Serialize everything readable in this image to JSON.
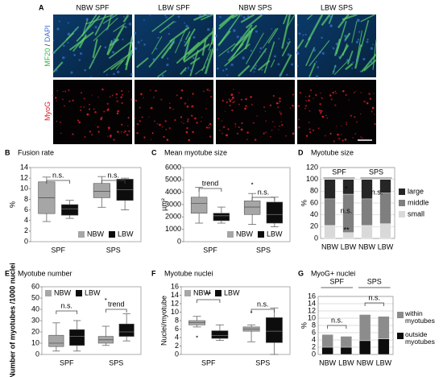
{
  "panel_a": {
    "letter": "A",
    "columns": [
      "NBW SPF",
      "LBW SPF",
      "NBW SPS",
      "LBW SPS"
    ],
    "row_labels": [
      [
        "MF20",
        " / ",
        "DAPI"
      ],
      [
        "MyoG"
      ]
    ]
  },
  "chart_data": [
    {
      "type": "box",
      "letter": "B",
      "title": "Fusion rate",
      "ylabel": "%",
      "categories": [
        "SPF",
        "SPS"
      ],
      "ylim": [
        0,
        14
      ],
      "yticks": [
        0,
        2,
        4,
        6,
        8,
        10,
        12,
        14
      ],
      "grid": false,
      "legend": "lower right",
      "annotations": [
        "n.s.",
        "n.s."
      ],
      "series": [
        {
          "name": "NBW",
          "color": "#a6a6a6",
          "values": [
            {
              "min": 3.8,
              "q1": 5.3,
              "median": 8.3,
              "q3": 11.3,
              "max": 12.2
            },
            {
              "min": 6.5,
              "q1": 8.3,
              "median": 9.5,
              "q3": 11,
              "max": 12.3
            }
          ]
        },
        {
          "name": "LBW",
          "color": "#0d0d0d",
          "values": [
            {
              "min": 4.4,
              "q1": 5.0,
              "median": 6.2,
              "q3": 7.0,
              "max": 7.8
            },
            {
              "min": 6.0,
              "q1": 7.8,
              "median": 9.8,
              "q3": 11.8,
              "max": 12.0
            }
          ]
        }
      ]
    },
    {
      "type": "box",
      "letter": "C",
      "title": "Mean myotube size",
      "ylabel": "µm²",
      "categories": [
        "SPF",
        "SPS"
      ],
      "ylim": [
        0,
        6000
      ],
      "yticks": [
        0,
        1000,
        2000,
        3000,
        4000,
        5000,
        6000
      ],
      "grid": false,
      "legend": "lower right",
      "annotations": [
        "trend",
        "n.s."
      ],
      "series": [
        {
          "name": "NBW",
          "color": "#a6a6a6",
          "values": [
            {
              "min": 1500,
              "q1": 2300,
              "median": 3100,
              "q3": 3600,
              "max": 4400
            },
            {
              "min": 1400,
              "q1": 2200,
              "median": 2800,
              "q3": 3300,
              "max": 3900,
              "outliers": [
                4700
              ]
            }
          ]
        },
        {
          "name": "LBW",
          "color": "#0d0d0d",
          "values": [
            {
              "min": 1500,
              "q1": 1700,
              "median": 2100,
              "q3": 2300,
              "max": 2800
            },
            {
              "min": 1200,
              "q1": 1500,
              "median": 2200,
              "q3": 3200,
              "max": 3600
            }
          ]
        }
      ]
    },
    {
      "type": "stacked",
      "letter": "D",
      "title": "Myotube size",
      "ylabel": "%",
      "categories": [
        "NBW",
        "LBW",
        "NBW",
        "LBW"
      ],
      "groups": [
        "SPF",
        "SPS"
      ],
      "ylim": [
        0,
        120
      ],
      "yticks": [
        0,
        20,
        40,
        60,
        80,
        100,
        120
      ],
      "grid": true,
      "legend": "right",
      "annotations": [
        "*",
        "n.s.",
        "**",
        "n.s."
      ],
      "series": [
        {
          "name": "small",
          "color": "#d9d9d9",
          "values": [
            22,
            10,
            22,
            25
          ]
        },
        {
          "name": "middle",
          "color": "#7f7f7f",
          "values": [
            45,
            65,
            45,
            52
          ]
        },
        {
          "name": "large",
          "color": "#262626",
          "values": [
            33,
            25,
            33,
            23
          ]
        }
      ]
    },
    {
      "type": "box",
      "letter": "E",
      "title": "Myotube number",
      "ylabel": "Number of myotubes /1000 nuclei",
      "categories": [
        "SPF",
        "SPS"
      ],
      "ylim": [
        0,
        60
      ],
      "yticks": [
        0,
        10,
        20,
        30,
        40,
        50,
        60
      ],
      "grid": false,
      "legend": "upper left",
      "annotations": [
        "n.s.",
        "trend"
      ],
      "series": [
        {
          "name": "NBW",
          "color": "#a6a6a6",
          "values": [
            {
              "min": 3,
              "q1": 7,
              "median": 10,
              "q3": 17,
              "max": 28
            },
            {
              "min": 8,
              "q1": 10,
              "median": 13,
              "q3": 16,
              "max": 25,
              "outliers": [
                49
              ]
            }
          ]
        },
        {
          "name": "LBW",
          "color": "#0d0d0d",
          "values": [
            {
              "min": 3,
              "q1": 8,
              "median": 16,
              "q3": 22,
              "max": 30
            },
            {
              "min": 12,
              "q1": 16,
              "median": 20,
              "q3": 27,
              "max": 36
            }
          ]
        }
      ]
    },
    {
      "type": "box",
      "letter": "F",
      "title": "Myotube nuclei",
      "ylabel": "Nuclei/myotube",
      "categories": [
        "SPF",
        "SPS"
      ],
      "ylim": [
        0,
        16
      ],
      "yticks": [
        0,
        2,
        4,
        6,
        8,
        10,
        12,
        14,
        16
      ],
      "grid": false,
      "legend": "upper left",
      "annotations": [
        "**",
        "n.s."
      ],
      "series": [
        {
          "name": "NBW",
          "color": "#a6a6a6",
          "values": [
            {
              "min": 6.5,
              "q1": 7,
              "median": 7.5,
              "q3": 8,
              "max": 9,
              "outliers": [
                4.2
              ]
            },
            {
              "min": 3,
              "q1": 5.5,
              "median": 6,
              "q3": 6.5,
              "max": 7,
              "outliers": [
                10
              ]
            }
          ]
        },
        {
          "name": "LBW",
          "color": "#0d0d0d",
          "values": [
            {
              "min": 3.3,
              "q1": 3.8,
              "median": 4.5,
              "q3": 5.6,
              "max": 7
            },
            {
              "min": 0,
              "q1": 2.8,
              "median": 5.5,
              "q3": 8.7,
              "max": 11
            }
          ]
        }
      ]
    },
    {
      "type": "stacked",
      "letter": "G",
      "title": "MyoG+ nuclei",
      "ylabel": "%",
      "categories": [
        "NBW",
        "LBW",
        "NBW",
        "LBW"
      ],
      "groups": [
        "SPF",
        "SPS"
      ],
      "ylim": [
        0,
        16
      ],
      "yticks": [
        0,
        2,
        4,
        6,
        8,
        10,
        12,
        14,
        16
      ],
      "grid": true,
      "legend": "right",
      "annotations": [
        "n.s.",
        "n.s."
      ],
      "series": [
        {
          "name": "outside myotubes",
          "color": "#0d0d0d",
          "values": [
            2,
            2,
            3.8,
            4.3
          ]
        },
        {
          "name": "within myotubes",
          "color": "#8c8c8c",
          "values": [
            3.5,
            3,
            7.2,
            6.2
          ]
        }
      ]
    }
  ]
}
